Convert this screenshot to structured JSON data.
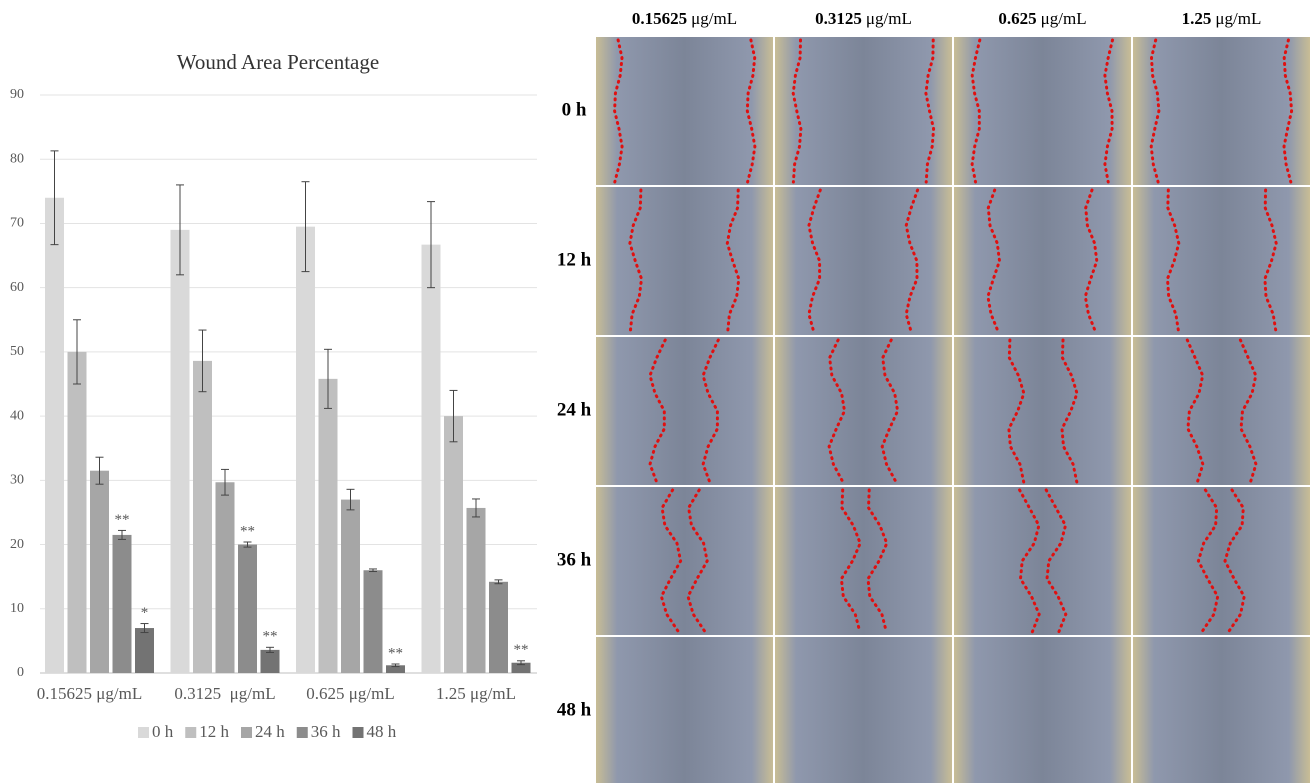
{
  "chart_data": {
    "type": "bar",
    "title": "Wound Area Percentage",
    "categories": [
      "0.15625 μg/mL",
      "0.3125  μg/mL",
      "0.625 μg/mL",
      "1.25 μg/mL"
    ],
    "series": [
      {
        "name": "0 h",
        "color": "#d9d9d9",
        "values": [
          74,
          69,
          69.5,
          66.7
        ],
        "errors": [
          7.3,
          7,
          7,
          6.7
        ],
        "significance": [
          null,
          null,
          null,
          null
        ]
      },
      {
        "name": "12 h",
        "color": "#bfbfbf",
        "values": [
          50,
          48.6,
          45.8,
          40
        ],
        "errors": [
          5,
          4.8,
          4.6,
          4
        ],
        "significance": [
          null,
          null,
          null,
          null
        ]
      },
      {
        "name": "24 h",
        "color": "#a6a6a6",
        "values": [
          31.5,
          29.7,
          27,
          25.7
        ],
        "errors": [
          2.1,
          2,
          1.6,
          1.4
        ],
        "significance": [
          null,
          null,
          null,
          null
        ]
      },
      {
        "name": "36 h",
        "color": "#8c8c8c",
        "values": [
          21.5,
          20,
          16,
          14.2
        ],
        "errors": [
          0.7,
          0.4,
          0.2,
          0.3
        ],
        "significance": [
          "**",
          "**",
          null,
          null
        ]
      },
      {
        "name": "48 h",
        "color": "#737373",
        "values": [
          7,
          3.6,
          1.2,
          1.6
        ],
        "errors": [
          0.7,
          0.4,
          0.2,
          0.3
        ],
        "significance": [
          "*",
          "**",
          "**",
          "**"
        ]
      }
    ],
    "ylim": [
      0,
      90
    ],
    "yticks": [
      0,
      10,
      20,
      30,
      40,
      50,
      60,
      70,
      80,
      90
    ],
    "grid": true
  },
  "image_grid": {
    "columns": [
      {
        "value": "0.15625",
        "unit": "μg/mL"
      },
      {
        "value": "0.3125",
        "unit": "μg/mL"
      },
      {
        "value": "0.625",
        "unit": "μg/mL"
      },
      {
        "value": "1.25",
        "unit": "μg/mL"
      }
    ],
    "rows": [
      "0 h",
      "12 h",
      "24 h",
      "36 h",
      "48 h"
    ]
  }
}
